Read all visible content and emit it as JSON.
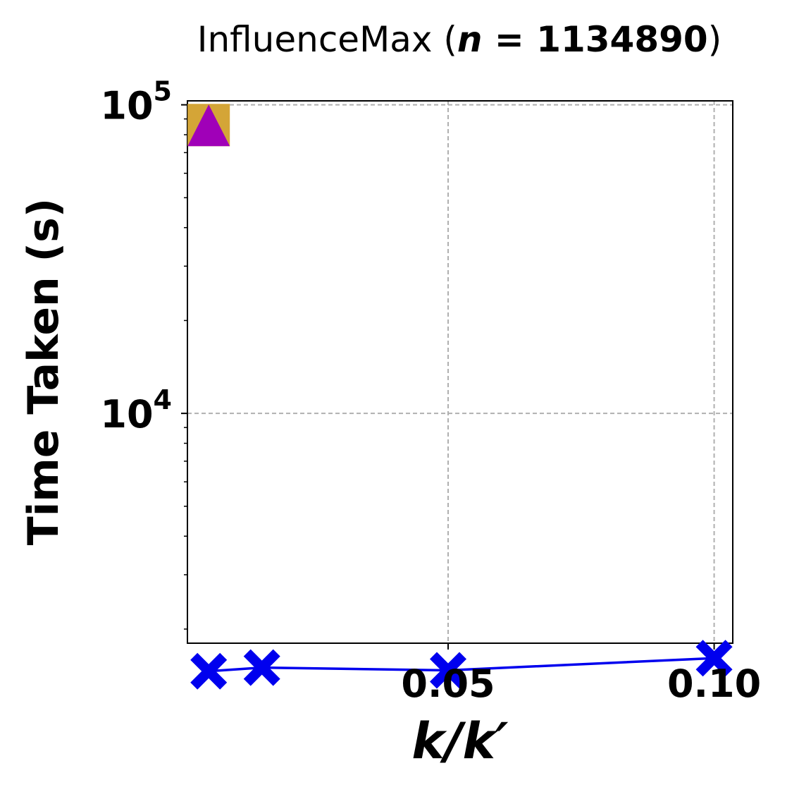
{
  "chart_data": {
    "type": "scatter",
    "title": {
      "name": "InfluenceMax",
      "open": " (",
      "var": "n",
      "eq": " = ",
      "value": "1134890",
      "close": ")"
    },
    "xlabel": "k/k′",
    "ylabel": "Time Taken (s)",
    "yscale": "log",
    "xlim": [
      0.001,
      0.1035
    ],
    "ylim": [
      1800,
      103000
    ],
    "xticks": [
      {
        "value": 0.05,
        "label": "0.05"
      },
      {
        "value": 0.1,
        "label": "0.10"
      }
    ],
    "yticks": [
      {
        "value": 10000,
        "base": "10",
        "exp": "4"
      },
      {
        "value": 100000,
        "base": "10",
        "exp": "5"
      }
    ],
    "grid": true,
    "series": [
      {
        "marker": "x-filled",
        "color": "#0000ee",
        "line": true,
        "points": [
          {
            "x": 0.005,
            "y": 1460
          },
          {
            "x": 0.015,
            "y": 1500
          },
          {
            "x": 0.05,
            "y": 1470
          },
          {
            "x": 0.1,
            "y": 1610
          }
        ]
      },
      {
        "marker": "square",
        "color": "#d4a537",
        "line": false,
        "points": [
          {
            "x": 0.005,
            "y": 86000
          }
        ]
      },
      {
        "marker": "triangle",
        "color": "#a000b8",
        "line": false,
        "points": [
          {
            "x": 0.005,
            "y": 86000
          }
        ]
      }
    ]
  }
}
